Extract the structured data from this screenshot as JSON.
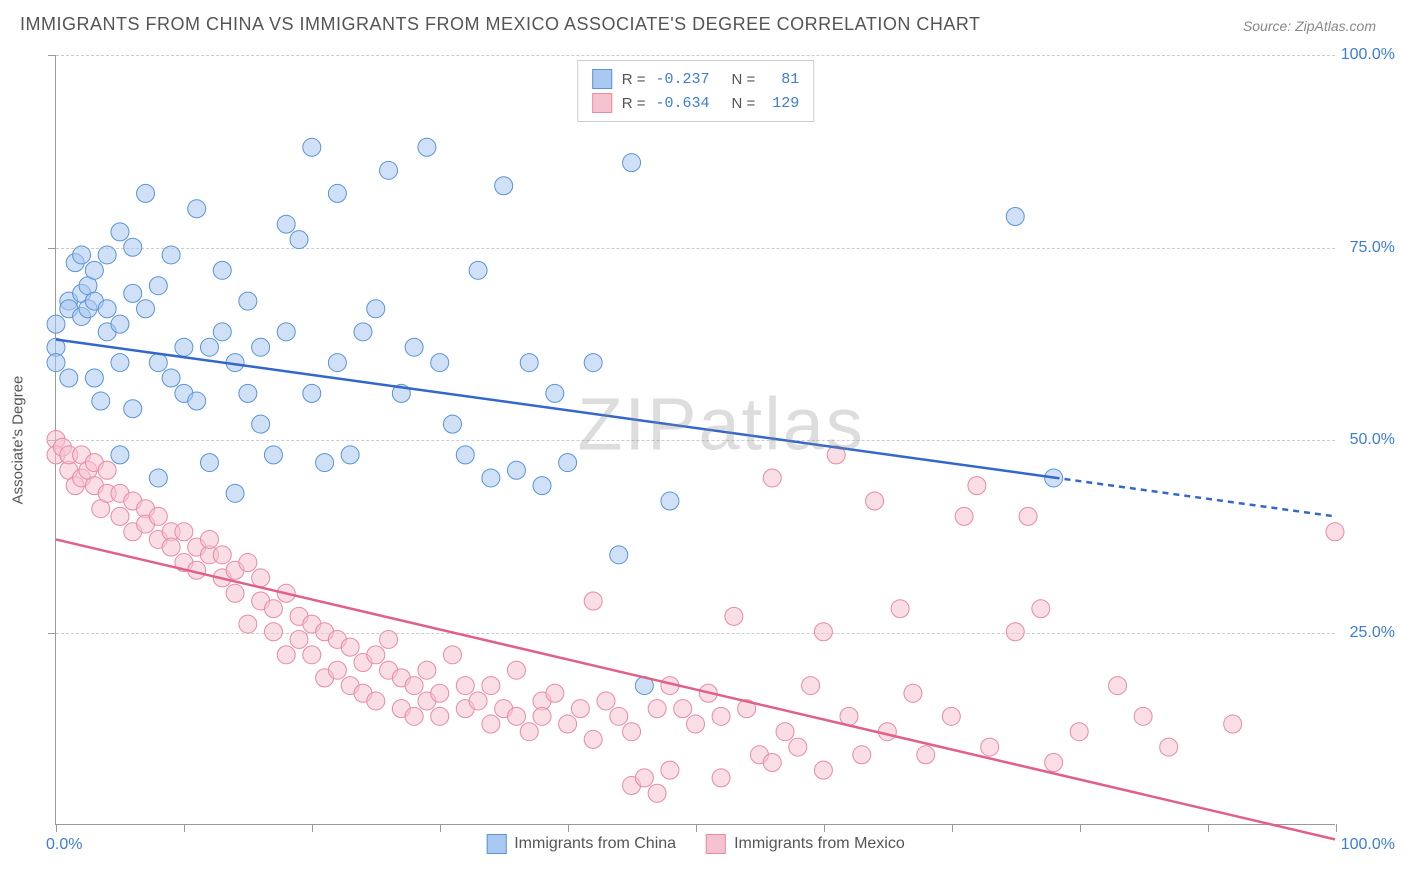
{
  "chart": {
    "type": "scatter",
    "title": "IMMIGRANTS FROM CHINA VS IMMIGRANTS FROM MEXICO ASSOCIATE'S DEGREE CORRELATION CHART",
    "source_label": "Source: ",
    "source_name": "ZipAtlas.com",
    "watermark": "ZIPatlas",
    "y_axis_title": "Associate's Degree",
    "xlim": [
      0,
      100
    ],
    "ylim": [
      0,
      100
    ],
    "x_tick_positions": [
      0,
      10,
      20,
      30,
      40,
      50,
      60,
      70,
      80,
      90,
      100
    ],
    "y_grid_positions": [
      25,
      50,
      75,
      100
    ],
    "y_tick_labels": [
      "25.0%",
      "50.0%",
      "75.0%",
      "100.0%"
    ],
    "x_label_min": "0.0%",
    "x_label_max": "100.0%",
    "background_color": "#ffffff",
    "grid_color": "#cccccc",
    "axis_color": "#999999",
    "tick_label_color": "#3b7dd8",
    "title_color": "#555555",
    "title_fontsize": 18,
    "tick_fontsize": 16,
    "marker_radius": 9,
    "marker_opacity": 0.55,
    "marker_stroke_width": 1,
    "series": [
      {
        "name": "Immigrants from China",
        "color_fill": "#a9c9f0",
        "color_stroke": "#5a94d6",
        "line_color": "#3367cc",
        "line_width": 2.5,
        "trend_y_at_x0": 63,
        "trend_y_at_x100": 40,
        "trend_solid_until_x": 78,
        "R": "-0.237",
        "N": "81",
        "points": [
          [
            0,
            62
          ],
          [
            0,
            65
          ],
          [
            0,
            60
          ],
          [
            1,
            58
          ],
          [
            1,
            68
          ],
          [
            1,
            67
          ],
          [
            1.5,
            73
          ],
          [
            2,
            69
          ],
          [
            2,
            66
          ],
          [
            2,
            74
          ],
          [
            2.5,
            70
          ],
          [
            2.5,
            67
          ],
          [
            3,
            68
          ],
          [
            3,
            72
          ],
          [
            3,
            58
          ],
          [
            3.5,
            55
          ],
          [
            4,
            64
          ],
          [
            4,
            67
          ],
          [
            4,
            74
          ],
          [
            5,
            60
          ],
          [
            5,
            65
          ],
          [
            5,
            48
          ],
          [
            5,
            77
          ],
          [
            6,
            54
          ],
          [
            6,
            69
          ],
          [
            6,
            75
          ],
          [
            7,
            67
          ],
          [
            7,
            82
          ],
          [
            8,
            60
          ],
          [
            8,
            70
          ],
          [
            8,
            45
          ],
          [
            9,
            74
          ],
          [
            9,
            58
          ],
          [
            10,
            62
          ],
          [
            10,
            56
          ],
          [
            11,
            55
          ],
          [
            11,
            80
          ],
          [
            12,
            62
          ],
          [
            12,
            47
          ],
          [
            13,
            64
          ],
          [
            13,
            72
          ],
          [
            14,
            60
          ],
          [
            14,
            43
          ],
          [
            15,
            68
          ],
          [
            15,
            56
          ],
          [
            16,
            62
          ],
          [
            16,
            52
          ],
          [
            17,
            48
          ],
          [
            18,
            64
          ],
          [
            18,
            78
          ],
          [
            19,
            76
          ],
          [
            20,
            88
          ],
          [
            20,
            56
          ],
          [
            21,
            47
          ],
          [
            22,
            60
          ],
          [
            22,
            82
          ],
          [
            23,
            48
          ],
          [
            24,
            64
          ],
          [
            25,
            67
          ],
          [
            26,
            85
          ],
          [
            27,
            56
          ],
          [
            28,
            62
          ],
          [
            29,
            88
          ],
          [
            30,
            60
          ],
          [
            31,
            52
          ],
          [
            32,
            48
          ],
          [
            33,
            72
          ],
          [
            34,
            45
          ],
          [
            35,
            83
          ],
          [
            36,
            46
          ],
          [
            37,
            60
          ],
          [
            38,
            44
          ],
          [
            39,
            56
          ],
          [
            40,
            47
          ],
          [
            42,
            60
          ],
          [
            44,
            35
          ],
          [
            45,
            86
          ],
          [
            46,
            18
          ],
          [
            48,
            42
          ],
          [
            75,
            79
          ],
          [
            78,
            45
          ]
        ]
      },
      {
        "name": "Immigrants from Mexico",
        "color_fill": "#f5c3d0",
        "color_stroke": "#e88aa5",
        "line_color": "#e06088",
        "line_width": 2.5,
        "trend_y_at_x0": 37,
        "trend_y_at_x100": -2,
        "trend_solid_until_x": 100,
        "R": "-0.634",
        "N": "129",
        "points": [
          [
            0,
            50
          ],
          [
            0,
            48
          ],
          [
            0.5,
            49
          ],
          [
            1,
            46
          ],
          [
            1,
            48
          ],
          [
            1.5,
            44
          ],
          [
            2,
            48
          ],
          [
            2,
            45
          ],
          [
            2.5,
            46
          ],
          [
            3,
            44
          ],
          [
            3,
            47
          ],
          [
            3.5,
            41
          ],
          [
            4,
            43
          ],
          [
            4,
            46
          ],
          [
            5,
            43
          ],
          [
            5,
            40
          ],
          [
            6,
            42
          ],
          [
            6,
            38
          ],
          [
            7,
            41
          ],
          [
            7,
            39
          ],
          [
            8,
            37
          ],
          [
            8,
            40
          ],
          [
            9,
            38
          ],
          [
            9,
            36
          ],
          [
            10,
            38
          ],
          [
            10,
            34
          ],
          [
            11,
            36
          ],
          [
            11,
            33
          ],
          [
            12,
            35
          ],
          [
            12,
            37
          ],
          [
            13,
            32
          ],
          [
            13,
            35
          ],
          [
            14,
            33
          ],
          [
            14,
            30
          ],
          [
            15,
            34
          ],
          [
            15,
            26
          ],
          [
            16,
            32
          ],
          [
            16,
            29
          ],
          [
            17,
            28
          ],
          [
            17,
            25
          ],
          [
            18,
            30
          ],
          [
            18,
            22
          ],
          [
            19,
            27
          ],
          [
            19,
            24
          ],
          [
            20,
            26
          ],
          [
            20,
            22
          ],
          [
            21,
            19
          ],
          [
            21,
            25
          ],
          [
            22,
            24
          ],
          [
            22,
            20
          ],
          [
            23,
            23
          ],
          [
            23,
            18
          ],
          [
            24,
            21
          ],
          [
            24,
            17
          ],
          [
            25,
            22
          ],
          [
            25,
            16
          ],
          [
            26,
            20
          ],
          [
            26,
            24
          ],
          [
            27,
            19
          ],
          [
            27,
            15
          ],
          [
            28,
            18
          ],
          [
            28,
            14
          ],
          [
            29,
            20
          ],
          [
            29,
            16
          ],
          [
            30,
            17
          ],
          [
            30,
            14
          ],
          [
            31,
            22
          ],
          [
            32,
            15
          ],
          [
            32,
            18
          ],
          [
            33,
            16
          ],
          [
            34,
            13
          ],
          [
            34,
            18
          ],
          [
            35,
            15
          ],
          [
            36,
            14
          ],
          [
            36,
            20
          ],
          [
            37,
            12
          ],
          [
            38,
            16
          ],
          [
            38,
            14
          ],
          [
            39,
            17
          ],
          [
            40,
            13
          ],
          [
            41,
            15
          ],
          [
            42,
            11
          ],
          [
            42,
            29
          ],
          [
            43,
            16
          ],
          [
            44,
            14
          ],
          [
            45,
            5
          ],
          [
            45,
            12
          ],
          [
            46,
            6
          ],
          [
            47,
            4
          ],
          [
            47,
            15
          ],
          [
            48,
            7
          ],
          [
            48,
            18
          ],
          [
            49,
            15
          ],
          [
            50,
            13
          ],
          [
            51,
            17
          ],
          [
            52,
            6
          ],
          [
            52,
            14
          ],
          [
            53,
            27
          ],
          [
            54,
            15
          ],
          [
            55,
            9
          ],
          [
            56,
            45
          ],
          [
            56,
            8
          ],
          [
            57,
            12
          ],
          [
            58,
            10
          ],
          [
            59,
            18
          ],
          [
            60,
            25
          ],
          [
            60,
            7
          ],
          [
            61,
            48
          ],
          [
            62,
            14
          ],
          [
            63,
            9
          ],
          [
            64,
            42
          ],
          [
            65,
            12
          ],
          [
            66,
            28
          ],
          [
            67,
            17
          ],
          [
            68,
            9
          ],
          [
            70,
            14
          ],
          [
            71,
            40
          ],
          [
            72,
            44
          ],
          [
            73,
            10
          ],
          [
            75,
            25
          ],
          [
            76,
            40
          ],
          [
            77,
            28
          ],
          [
            78,
            8
          ],
          [
            80,
            12
          ],
          [
            83,
            18
          ],
          [
            85,
            14
          ],
          [
            87,
            10
          ],
          [
            92,
            13
          ],
          [
            100,
            38
          ]
        ]
      }
    ]
  },
  "legend_top": {
    "r_label": "R =",
    "n_label": "N ="
  }
}
